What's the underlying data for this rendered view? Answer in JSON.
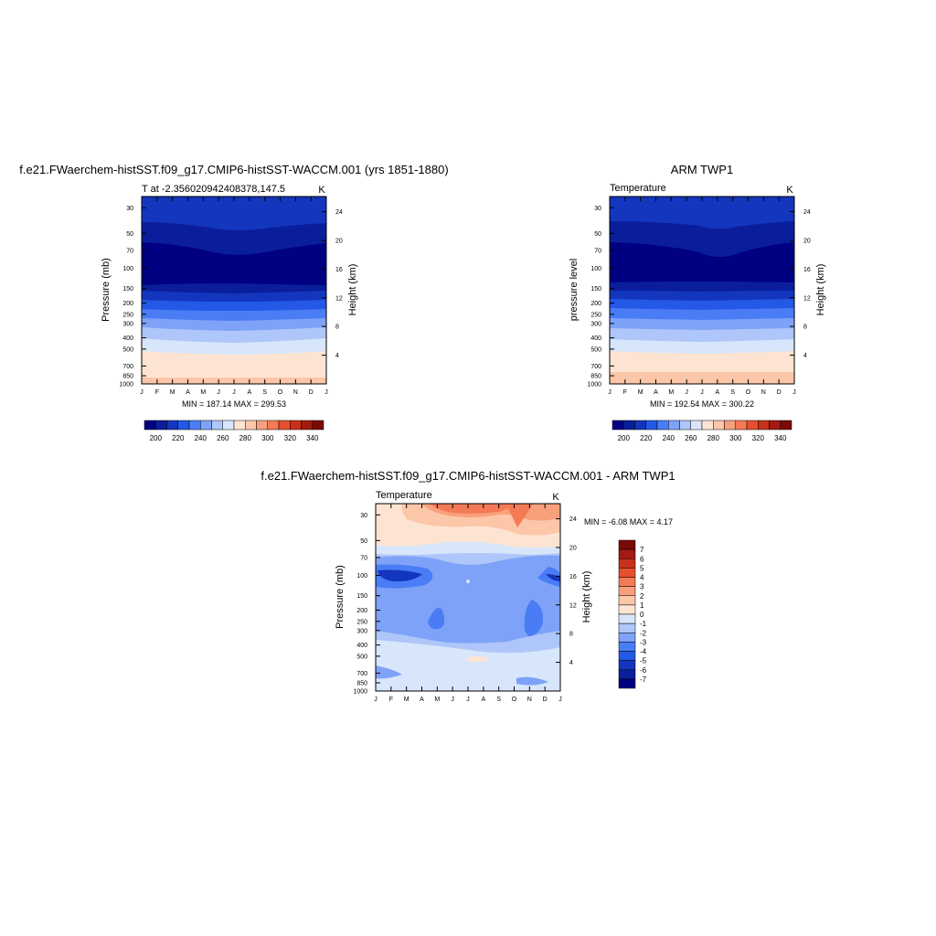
{
  "panel_titles": {
    "model": "f.e21.FWaerchem-histSST.f09_g17.CMIP6-histSST-WACCM.001 (yrs 1851-1880)",
    "obs": "ARM TWP1",
    "diff": "f.e21.FWaerchem-histSST.f09_g17.CMIP6-histSST-WACCM.001 - ARM TWP1"
  },
  "shared": {
    "months": [
      "J",
      "F",
      "M",
      "A",
      "M",
      "J",
      "J",
      "A",
      "S",
      "O",
      "N",
      "D",
      "J"
    ],
    "pressure_ticks": [
      "30",
      "50",
      "70",
      "100",
      "150",
      "200",
      "250",
      "300",
      "400",
      "500",
      "700",
      "850",
      "1000"
    ],
    "height_ticks": [
      "24",
      "20",
      "16",
      "12",
      "8",
      "4"
    ],
    "height_label": "Height (km)",
    "units": "K"
  },
  "chart_data": [
    {
      "type": "heatmap",
      "title": "f.e21.FWaerchem-histSST.f09_g17.CMIP6-histSST-WACCM.001 (yrs 1851-1880)",
      "subtitle": "T at -2.356020942408378,147.5",
      "units": "K",
      "xlabel": "",
      "ylabel": "Pressure (mb)",
      "y2label": "Height (km)",
      "stats": "MIN = 187.14 MAX = 299.53",
      "colorbar": {
        "levels": [
          "200",
          "220",
          "240",
          "260",
          "280",
          "300",
          "320",
          "340"
        ],
        "colors": [
          "#000080",
          "#0a1e9c",
          "#1436be",
          "#2458e6",
          "#4a7df5",
          "#7ea2f7",
          "#aec6f9",
          "#d8e6fb",
          "#fde4d2",
          "#fcc6a8",
          "#f8a07c",
          "#f47a55",
          "#e6502e",
          "#c8301a",
          "#a21a10",
          "#7a0a06"
        ]
      }
    },
    {
      "type": "heatmap",
      "title": "ARM TWP1",
      "subtitle": "Temperature",
      "units": "K",
      "xlabel": "",
      "ylabel": "pressure level",
      "y2label": "Height (km)",
      "stats": "MIN = 192.54 MAX = 300.22",
      "colorbar": {
        "levels": [
          "200",
          "220",
          "240",
          "260",
          "280",
          "300",
          "320",
          "340"
        ],
        "colors": [
          "#000080",
          "#0a1e9c",
          "#1436be",
          "#2458e6",
          "#4a7df5",
          "#7ea2f7",
          "#aec6f9",
          "#d8e6fb",
          "#fde4d2",
          "#fcc6a8",
          "#f8a07c",
          "#f47a55",
          "#e6502e",
          "#c8301a",
          "#a21a10",
          "#7a0a06"
        ]
      }
    },
    {
      "type": "heatmap",
      "title": "f.e21.FWaerchem-histSST.f09_g17.CMIP6-histSST-WACCM.001 - ARM TWP1",
      "subtitle": "Temperature",
      "units": "K",
      "xlabel": "",
      "ylabel": "Pressure (mb)",
      "y2label": "Height (km)",
      "stats": "MIN =  -6.08 MAX =   4.17",
      "colorbar": {
        "levels": [
          "7",
          "6",
          "5",
          "4",
          "3",
          "2",
          "1",
          "0",
          "-1",
          "-2",
          "-3",
          "-4",
          "-5",
          "-6",
          "-7"
        ],
        "colors": [
          "#7a0a06",
          "#a21a10",
          "#c8301a",
          "#e6502e",
          "#f47a55",
          "#f8a07c",
          "#fcc6a8",
          "#fde4d2",
          "#d8e6fb",
          "#aec6f9",
          "#7ea2f7",
          "#4a7df5",
          "#2458e6",
          "#1436be",
          "#0a1e9c",
          "#000080"
        ]
      }
    }
  ]
}
